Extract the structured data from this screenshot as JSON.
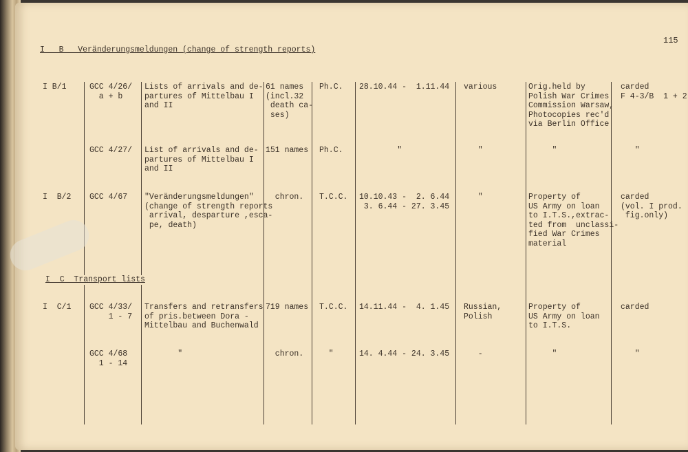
{
  "page_number": "115",
  "sections": [
    {
      "heading": "I   B   Veränderungsmeldungen (change of strength reports)"
    },
    {
      "heading": "I  C  Transport lists"
    }
  ],
  "rows": [
    {
      "ref": "I B/1",
      "file": "GCC 4/26/\n  a + b",
      "description": "Lists of arrivals and de-\npartures of Mittelbau I\nand II",
      "extent": "61 names\n(incl.32\n death ca-\n ses)",
      "type": "Ph.C.",
      "dates": "28.10.44 -  1.11.44",
      "language": "various",
      "remarks": "Orig.held by\nPolish War Crimes\nCommission Warsaw,\nPhotocopies rec'd\nvia Berlin Office",
      "status": "carded\nF 4-3/B  1 + 2"
    },
    {
      "ref": "",
      "file": "GCC 4/27/",
      "description": "List of arrivals and de-\npartures of Mittelbau I\nand II",
      "extent": "151 names",
      "type": "Ph.C.",
      "dates": "        \"",
      "language": "   \"",
      "remarks": "     \"",
      "status": "   \""
    },
    {
      "ref": "I  B/2",
      "file": "GCC 4/67",
      "description": "\"Veränderungsmeldungen\"\n(change of strength reports\n arrival, desparture ,esca-\n pe, death)",
      "extent": "  chron.",
      "type": "T.C.C.",
      "dates": "10.10.43 -  2. 6.44\n 3. 6.44 - 27. 3.45",
      "language": "   \"",
      "remarks": "Property of\nUS Army on loan\nto I.T.S.,extrac-\nted from  unclassi-\nfied War Crimes\nmaterial",
      "status": "carded\n(vol. I prod.\n fig.only)"
    },
    {
      "ref": "I  C/1",
      "file": "GCC 4/33/\n    1 - 7",
      "description": "Transfers and retransfers\nof pris.between Dora -\nMittelbau and Buchenwald",
      "extent": "719 names",
      "type": "T.C.C.",
      "dates": "14.11.44 -  4. 1.45",
      "language": "Russian,\nPolish",
      "remarks": "Property of\nUS Army on loan\nto I.T.S.",
      "status": "carded"
    },
    {
      "ref": "",
      "file": "GCC 4/68\n  1 - 14",
      "description": "       \"",
      "extent": "  chron.",
      "type": "  \"",
      "dates": "14. 4.44 - 24. 3.45",
      "language": "   -",
      "remarks": "     \"",
      "status": "   \""
    }
  ],
  "colors": {
    "paper": "#f4e4c4",
    "ink": "#3b3128"
  }
}
